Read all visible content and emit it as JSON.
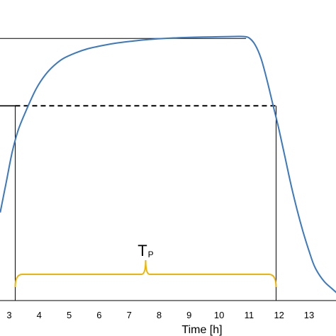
{
  "chart_data": {
    "type": "line",
    "xlabel": "Time [h]",
    "ylabel": "",
    "x_ticks": [
      3,
      4,
      5,
      6,
      7,
      8,
      9,
      10,
      11,
      12,
      13
    ],
    "xlim": [
      2.7,
      14.0
    ],
    "ylim": [
      0,
      1
    ],
    "grid": false,
    "series": [
      {
        "color": "#3a78c2",
        "x": [
          2.7,
          2.9,
          3.1,
          3.3,
          3.6,
          3.9,
          4.2,
          4.5,
          4.8,
          5.2,
          5.6,
          6.0,
          6.5,
          7.0,
          7.5,
          8.0,
          8.5,
          9.0,
          9.5,
          10.0,
          10.5,
          10.8,
          11.0,
          11.2,
          11.4,
          11.6,
          11.8,
          12.0,
          12.2,
          12.4,
          12.6,
          12.8,
          13.0,
          13.2,
          13.5,
          13.8,
          14.0
        ],
        "y": [
          0.32,
          0.43,
          0.54,
          0.62,
          0.7,
          0.77,
          0.82,
          0.855,
          0.88,
          0.9,
          0.915,
          0.925,
          0.935,
          0.942,
          0.948,
          0.952,
          0.955,
          0.957,
          0.958,
          0.959,
          0.96,
          0.96,
          0.955,
          0.93,
          0.88,
          0.8,
          0.71,
          0.62,
          0.52,
          0.42,
          0.33,
          0.25,
          0.18,
          0.12,
          0.07,
          0.04,
          0.02
        ]
      }
    ],
    "reference_lines": {
      "upper_level": 0.953,
      "threshold_level": 0.708,
      "t_start": 3.2,
      "t_end": 11.9
    },
    "annotation": {
      "main": "T",
      "subscript": "P"
    }
  }
}
